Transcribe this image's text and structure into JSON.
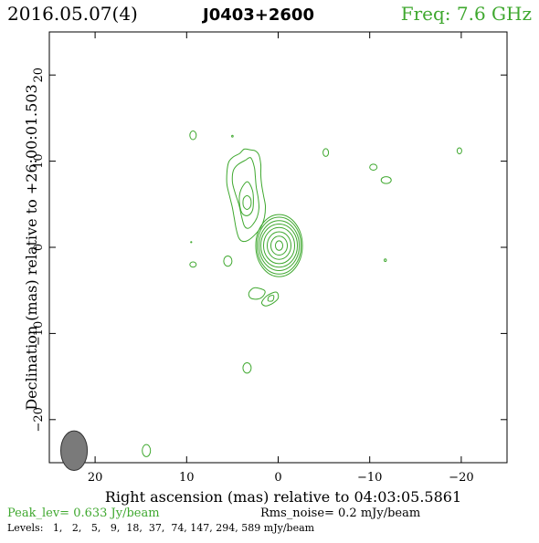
{
  "header": {
    "date": "2016.05.07(4)",
    "source": "J0403+2600",
    "freq": "Freq: 7.6 GHz"
  },
  "footer": {
    "peak": "Peak_lev=  0.633 Jy/beam",
    "rms": "Rms_noise=  0.2 mJy/beam",
    "levels": "Levels:   1,   2,   5,   9,  18,  37,  74, 147, 294, 589 mJy/beam"
  },
  "colors": {
    "contour": "#3fa82f",
    "frame": "#000000",
    "beam": "#7a7a7a"
  },
  "chart_data": {
    "type": "contour",
    "xlabel": "Right ascension (mas) relative to 04:03:05.5861",
    "ylabel": "Declination (mas) relative to +26:00:01.503",
    "xlim": [
      25,
      -25
    ],
    "ylim": [
      -25,
      25
    ],
    "x_ticks": [
      20,
      10,
      0,
      -10,
      -20
    ],
    "x_tick_labels": [
      "20",
      "10",
      "0",
      "−10",
      "−20"
    ],
    "y_ticks": [
      20,
      10,
      0,
      -10,
      -20
    ],
    "y_tick_labels": [
      "20",
      "10",
      "0",
      "−10",
      "−20"
    ],
    "peak_jy_per_beam": 0.633,
    "rms_noise_mjy_per_beam": 0.2,
    "levels_mjy_per_beam": [
      1,
      2,
      5,
      9,
      18,
      37,
      74,
      147,
      294,
      589
    ],
    "beam": {
      "x": 22.3,
      "y": -23.6,
      "major_mas": 2.3,
      "minor_mas": 1.45,
      "pa_deg": 0
    },
    "core": {
      "x": -0.1,
      "y": 0.2,
      "rx_mas": [
        0.4,
        0.9,
        1.3,
        1.7,
        2.0,
        2.2,
        2.4,
        2.55
      ],
      "ry_mas": [
        0.55,
        1.1,
        1.6,
        2.1,
        2.5,
        2.9,
        3.3,
        3.6
      ]
    },
    "jet_component": {
      "x": 3.4,
      "y": 5.2
    },
    "contours": [
      {
        "name": "jet-outer",
        "points": [
          [
            3.0,
            11.3
          ],
          [
            3.7,
            11.4
          ],
          [
            4.2,
            10.9
          ],
          [
            4.9,
            10.5
          ],
          [
            5.4,
            9.9
          ],
          [
            5.6,
            8.7
          ],
          [
            5.6,
            7.3
          ],
          [
            5.3,
            5.9
          ],
          [
            5.0,
            4.6
          ],
          [
            4.8,
            3.4
          ],
          [
            4.6,
            2.2
          ],
          [
            4.3,
            1.1
          ],
          [
            3.9,
            0.7
          ],
          [
            3.3,
            0.8
          ],
          [
            2.6,
            1.4
          ],
          [
            1.9,
            2.3
          ],
          [
            1.5,
            3.5
          ],
          [
            1.4,
            4.8
          ],
          [
            1.6,
            6.0
          ],
          [
            1.8,
            7.2
          ],
          [
            1.9,
            8.4
          ],
          [
            1.9,
            9.6
          ],
          [
            2.1,
            10.7
          ],
          [
            2.5,
            11.2
          ]
        ]
      },
      {
        "name": "jet-2",
        "points": [
          [
            3.0,
            10.4
          ],
          [
            3.6,
            10.1
          ],
          [
            4.4,
            9.6
          ],
          [
            4.9,
            8.9
          ],
          [
            5.0,
            7.6
          ],
          [
            4.7,
            6.3
          ],
          [
            4.3,
            5.0
          ],
          [
            4.0,
            3.6
          ],
          [
            3.7,
            2.5
          ],
          [
            3.3,
            2.2
          ],
          [
            2.8,
            2.6
          ],
          [
            2.3,
            3.5
          ],
          [
            2.1,
            4.6
          ],
          [
            2.2,
            5.8
          ],
          [
            2.4,
            7.0
          ],
          [
            2.5,
            8.2
          ],
          [
            2.6,
            9.3
          ]
        ]
      },
      {
        "name": "jet-3",
        "points": [
          [
            3.3,
            7.6
          ],
          [
            3.8,
            7.2
          ],
          [
            4.2,
            6.2
          ],
          [
            4.2,
            4.9
          ],
          [
            3.9,
            3.9
          ],
          [
            3.3,
            3.7
          ],
          [
            2.8,
            4.3
          ],
          [
            2.7,
            5.4
          ],
          [
            2.8,
            6.6
          ]
        ]
      },
      {
        "name": "jet-4",
        "points": [
          [
            3.4,
            6.0
          ],
          [
            3.8,
            5.6
          ],
          [
            3.8,
            4.8
          ],
          [
            3.4,
            4.4
          ],
          [
            3.0,
            4.8
          ],
          [
            3.0,
            5.6
          ]
        ]
      },
      {
        "name": "comp-south-1",
        "points": [
          [
            0.2,
            -5.2
          ],
          [
            1.2,
            -5.6
          ],
          [
            1.8,
            -6.4
          ],
          [
            1.4,
            -6.8
          ],
          [
            0.6,
            -6.5
          ],
          [
            0.0,
            -5.9
          ]
        ]
      },
      {
        "name": "comp-south-2",
        "points": [
          [
            1.5,
            -5.0
          ],
          [
            2.6,
            -4.7
          ],
          [
            3.2,
            -5.3
          ],
          [
            3.0,
            -5.9
          ],
          [
            2.2,
            -6.0
          ],
          [
            1.6,
            -5.6
          ]
        ]
      },
      {
        "name": "comp-south-inner",
        "points": [
          [
            0.5,
            -5.6
          ],
          [
            1.0,
            -5.7
          ],
          [
            1.1,
            -6.2
          ],
          [
            0.6,
            -6.2
          ]
        ]
      }
    ],
    "blobs": [
      {
        "x": 9.3,
        "y": 13.0,
        "rx": 0.35,
        "ry": 0.5
      },
      {
        "x": -5.2,
        "y": 11.0,
        "rx": 0.3,
        "ry": 0.45
      },
      {
        "x": -10.4,
        "y": 9.3,
        "rx": 0.4,
        "ry": 0.35
      },
      {
        "x": -11.8,
        "y": 7.8,
        "rx": 0.55,
        "ry": 0.4
      },
      {
        "x": -19.8,
        "y": 11.2,
        "rx": 0.25,
        "ry": 0.35
      },
      {
        "x": 9.3,
        "y": -2.0,
        "rx": 0.35,
        "ry": 0.3
      },
      {
        "x": 5.5,
        "y": -1.6,
        "rx": 0.45,
        "ry": 0.6
      },
      {
        "x": 3.4,
        "y": -14.0,
        "rx": 0.45,
        "ry": 0.6
      },
      {
        "x": 14.4,
        "y": -23.6,
        "rx": 0.45,
        "ry": 0.7
      },
      {
        "x": -11.7,
        "y": -1.5,
        "rx": 0.12,
        "ry": 0.15
      },
      {
        "x": 5.0,
        "y": 12.9,
        "rx": 0.08,
        "ry": 0.1
      },
      {
        "x": 9.5,
        "y": 0.6,
        "rx": 0.06,
        "ry": 0.06
      }
    ]
  }
}
